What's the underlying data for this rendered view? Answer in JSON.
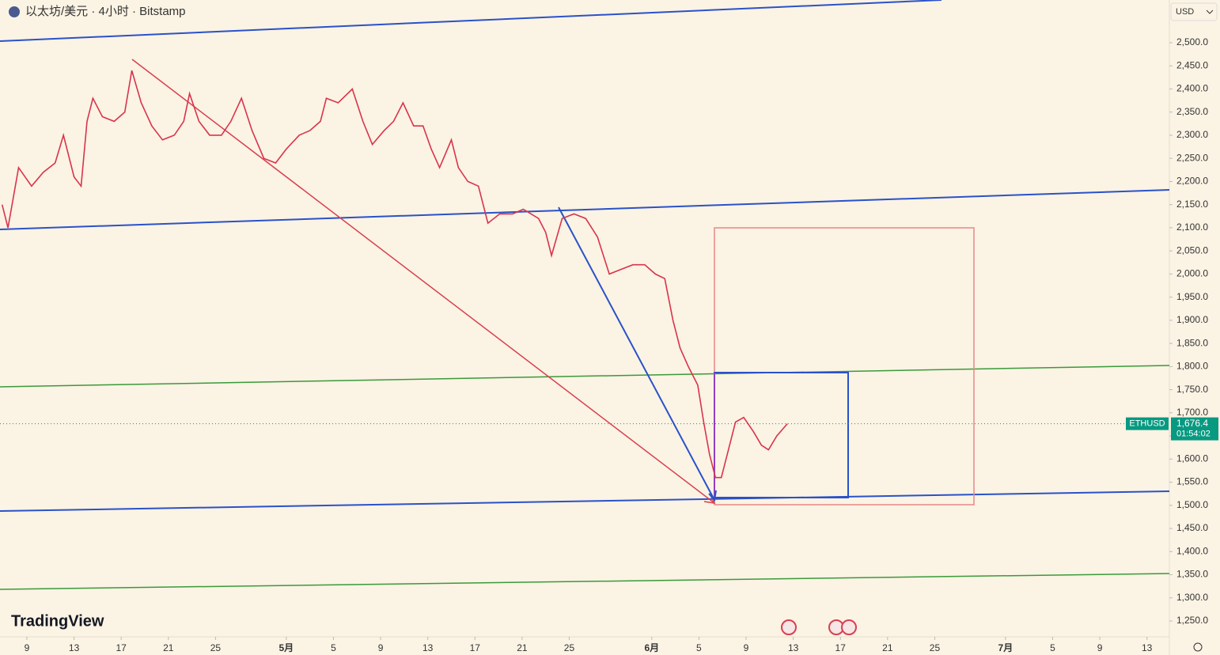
{
  "chart_data": {
    "type": "line",
    "title": "以太坊/美元 · 4小时 · Bitstamp",
    "currency": "USD",
    "brand": "TradingView",
    "symbol": "ETHUSD",
    "countdown": "01:54:02",
    "last_price": {
      "value": 1676.4,
      "label": "1,676.4"
    },
    "color": "#d8344c",
    "x": [
      6.9,
      7.4,
      8.3,
      9.4,
      10.4,
      11.4,
      12.1,
      13.0,
      13.6,
      14.1,
      14.6,
      15.4,
      16.4,
      17.3,
      17.9,
      18.7,
      19.6,
      20.5,
      21.5,
      22.3,
      22.8,
      23.6,
      24.5,
      25.5,
      26.3,
      27.2,
      28.1,
      29.1,
      30.1,
      31.0,
      32.1,
      33.0,
      33.9,
      34.4,
      35.4,
      36.6,
      37.5,
      38.3,
      39.3,
      40.1,
      40.9,
      41.8,
      42.6,
      43.3,
      44.0,
      45.0,
      45.6,
      46.4,
      47.3,
      48.1,
      49.1,
      50.2,
      51.1,
      52.4,
      53.0,
      53.5,
      54.4,
      55.4,
      56.4,
      57.4,
      58.4,
      59.4,
      60.4,
      61.4,
      62.3,
      63.1,
      63.8,
      64.4,
      65.1,
      65.9,
      66.4,
      66.9,
      67.4,
      67.9,
      68.5,
      69.1,
      69.8,
      70.6,
      71.3,
      71.9,
      72.6,
      73.5
    ],
    "values": [
      2150,
      2100,
      2230,
      2190,
      2220,
      2240,
      2300,
      2210,
      2190,
      2330,
      2380,
      2340,
      2330,
      2350,
      2440,
      2370,
      2320,
      2290,
      2300,
      2330,
      2390,
      2330,
      2300,
      2300,
      2330,
      2380,
      2310,
      2250,
      2240,
      2270,
      2300,
      2310,
      2330,
      2380,
      2370,
      2400,
      2330,
      2280,
      2310,
      2330,
      2370,
      2320,
      2320,
      2270,
      2230,
      2290,
      2230,
      2200,
      2190,
      2110,
      2130,
      2130,
      2140,
      2120,
      2090,
      2040,
      2120,
      2130,
      2120,
      2080,
      2000,
      2010,
      2020,
      2020,
      2000,
      1990,
      1900,
      1840,
      1800,
      1760,
      1680,
      1610,
      1560,
      1560,
      1620,
      1680,
      1690,
      1660,
      1630,
      1620,
      1650,
      1676.4
    ],
    "xlim": [
      6.72,
      105.9
    ],
    "xticks": [
      9,
      13,
      17,
      21,
      25,
      {
        "value": 31,
        "label": "5月"
      },
      {
        "value": 35,
        "label": "5"
      },
      {
        "value": 39,
        "label": "9"
      },
      {
        "value": 43,
        "label": "13"
      },
      {
        "value": 47,
        "label": "17"
      },
      {
        "value": 51,
        "label": "21"
      },
      {
        "value": 55,
        "label": "25"
      },
      {
        "value": 62,
        "label": "6月"
      },
      {
        "value": 66,
        "label": "5"
      },
      {
        "value": 70,
        "label": "9"
      },
      {
        "value": 74,
        "label": "13"
      },
      {
        "value": 78,
        "label": "17"
      },
      {
        "value": 82,
        "label": "21"
      },
      {
        "value": 86,
        "label": "25"
      },
      {
        "value": 92,
        "label": "7月"
      },
      {
        "value": 96,
        "label": "5"
      },
      {
        "value": 100,
        "label": "9"
      },
      {
        "value": 104,
        "label": "13"
      }
    ],
    "ylim": [
      1215.8,
      2592.3
    ],
    "yticks": [
      {
        "value": 1250,
        "label": "1,250.0"
      },
      {
        "value": 1300,
        "label": "1,300.0"
      },
      {
        "value": 1350,
        "label": "1,350.0"
      },
      {
        "value": 1400,
        "label": "1,400.0"
      },
      {
        "value": 1450,
        "label": "1,450.0"
      },
      {
        "value": 1500,
        "label": "1,500.0"
      },
      {
        "value": 1550,
        "label": "1,550.0"
      },
      {
        "value": 1600,
        "label": "1,600.0"
      },
      {
        "value": 1650,
        "label": "1,650.0"
      },
      {
        "value": 1700,
        "label": "1,700.0"
      },
      {
        "value": 1750,
        "label": "1,750.0"
      },
      {
        "value": 1800,
        "label": "1,800.0"
      },
      {
        "value": 1850,
        "label": "1,850.0"
      },
      {
        "value": 1900,
        "label": "1,900.0"
      },
      {
        "value": 1950,
        "label": "1,950.0"
      },
      {
        "value": 2000,
        "label": "2,000.0"
      },
      {
        "value": 2050,
        "label": "2,050.0"
      },
      {
        "value": 2100,
        "label": "2,100.0"
      },
      {
        "value": 2150,
        "label": "2,150.0"
      },
      {
        "value": 2200,
        "label": "2,200.0"
      },
      {
        "value": 2250,
        "label": "2,250.0"
      },
      {
        "value": 2300,
        "label": "2,300.0"
      },
      {
        "value": 2350,
        "label": "2,350.0"
      },
      {
        "value": 2400,
        "label": "2,400.0"
      },
      {
        "value": 2450,
        "label": "2,450.0"
      },
      {
        "value": 2500,
        "label": "2,500.0"
      }
    ],
    "grid": false
  }
}
